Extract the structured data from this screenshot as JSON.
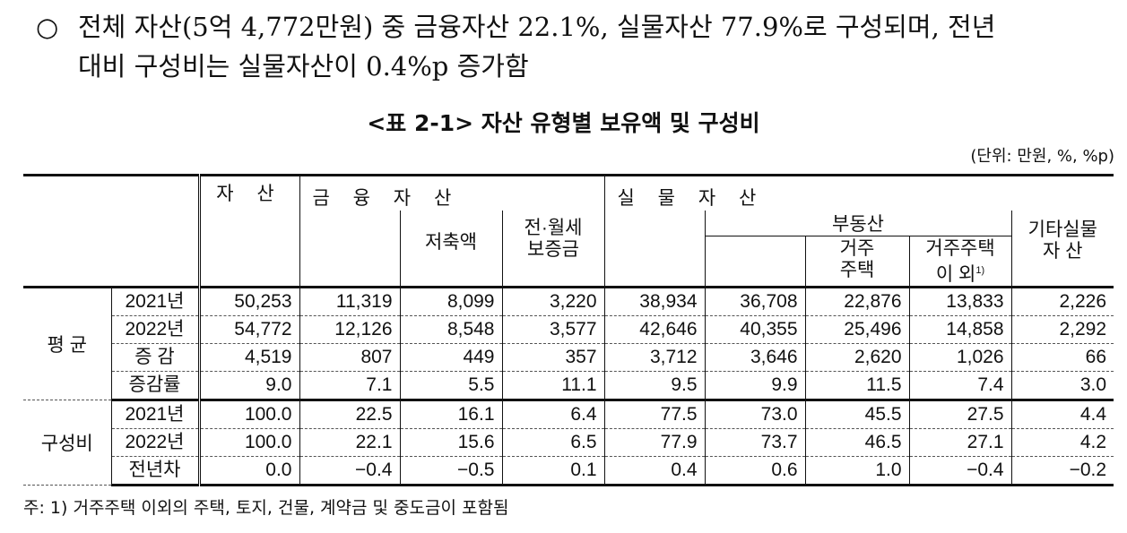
{
  "lead": {
    "bullet": "○",
    "line1": "전체 자산(5억 4,772만원) 중 금융자산 22.1%, 실물자산 77.9%로 구성되며, 전년",
    "line2": "대비 구성비는 실물자산이 0.4%p 증가함"
  },
  "title": "<표 2-1> 자산 유형별 보유액 및 구성비",
  "unit": "(단위: 만원, %, %p)",
  "table": {
    "headers": {
      "assets": "자 산",
      "financial": "금 융 자 산",
      "savings": "저축액",
      "deposit_l1": "전·월세",
      "deposit_l2": "보증금",
      "real": "실 물 자 산",
      "realestate": "부동산",
      "residential_l1": "거주",
      "residential_l2": "주택",
      "nonres_l1": "거주주택",
      "nonres_l2": "이 외",
      "nonres_note": "1)",
      "other_l1": "기타실물",
      "other_l2": "자 산"
    },
    "groups": [
      {
        "label": "평 균",
        "rows": [
          {
            "label": "2021년",
            "values": [
              "50,253",
              "11,319",
              "8,099",
              "3,220",
              "38,934",
              "36,708",
              "22,876",
              "13,833",
              "2,226"
            ]
          },
          {
            "label": "2022년",
            "values": [
              "54,772",
              "12,126",
              "8,548",
              "3,577",
              "42,646",
              "40,355",
              "25,496",
              "14,858",
              "2,292"
            ]
          },
          {
            "label": "증 감",
            "values": [
              "4,519",
              "807",
              "449",
              "357",
              "3,712",
              "3,646",
              "2,620",
              "1,026",
              "66"
            ]
          },
          {
            "label": "증감률",
            "values": [
              "9.0",
              "7.1",
              "5.5",
              "11.1",
              "9.5",
              "9.9",
              "11.5",
              "7.4",
              "3.0"
            ]
          }
        ]
      },
      {
        "label": "구성비",
        "rows": [
          {
            "label": "2021년",
            "values": [
              "100.0",
              "22.5",
              "16.1",
              "6.4",
              "77.5",
              "73.0",
              "45.5",
              "27.5",
              "4.4"
            ]
          },
          {
            "label": "2022년",
            "values": [
              "100.0",
              "22.1",
              "15.6",
              "6.5",
              "77.9",
              "73.7",
              "46.5",
              "27.1",
              "4.2"
            ]
          },
          {
            "label": "전년차",
            "values": [
              "0.0",
              "−0.4",
              "−0.5",
              "0.1",
              "0.4",
              "0.6",
              "1.0",
              "−0.4",
              "−0.2"
            ]
          }
        ]
      }
    ]
  },
  "note": "주: 1) 거주주택 이외의 주택, 토지, 건물, 계약금 및 중도금이 포함됨"
}
